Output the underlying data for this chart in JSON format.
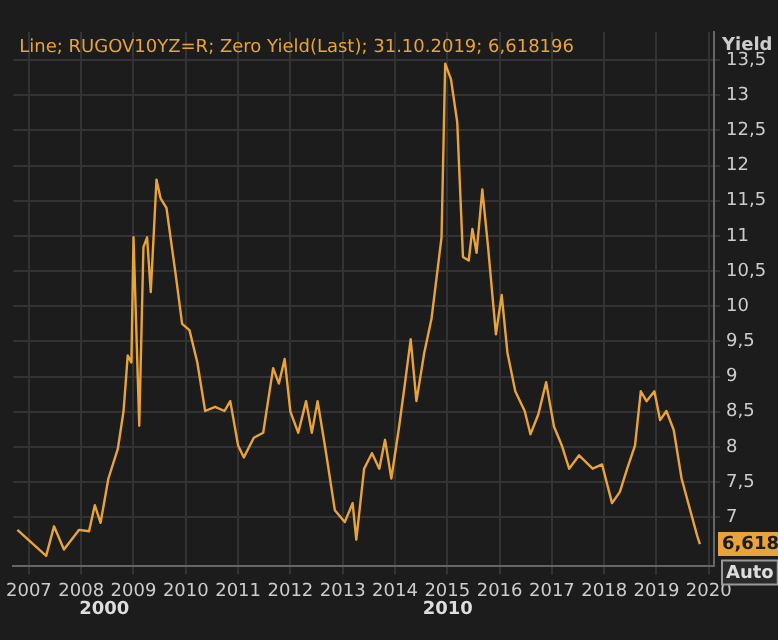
{
  "chart_data": {
    "type": "line",
    "title": "Line; RUGOV10YZ=R; Zero Yield(Last); 31.10.2019; 6,618196",
    "ylabel": "Yield",
    "x": [
      2006.78,
      2007.33,
      2007.48,
      2007.67,
      2007.96,
      2008.15,
      2008.26,
      2008.37,
      2008.52,
      2008.7,
      2008.81,
      2008.89,
      2008.96,
      2009.0,
      2009.11,
      2009.19,
      2009.26,
      2009.33,
      2009.44,
      2009.52,
      2009.63,
      2009.81,
      2009.93,
      2010.07,
      2010.22,
      2010.37,
      2010.56,
      2010.74,
      2010.85,
      2011.0,
      2011.11,
      2011.3,
      2011.48,
      2011.67,
      2011.78,
      2011.89,
      2012.0,
      2012.15,
      2012.3,
      2012.41,
      2012.52,
      2012.67,
      2012.85,
      2013.04,
      2013.19,
      2013.26,
      2013.41,
      2013.56,
      2013.7,
      2013.81,
      2013.93,
      2014.07,
      2014.19,
      2014.3,
      2014.41,
      2014.56,
      2014.7,
      2014.89,
      2014.96,
      2015.07,
      2015.19,
      2015.3,
      2015.41,
      2015.48,
      2015.56,
      2015.67,
      2015.78,
      2015.93,
      2016.04,
      2016.15,
      2016.3,
      2016.48,
      2016.59,
      2016.74,
      2016.89,
      2017.04,
      2017.19,
      2017.33,
      2017.52,
      2017.78,
      2017.96,
      2018.15,
      2018.3,
      2018.44,
      2018.59,
      2018.7,
      2018.81,
      2018.96,
      2019.07,
      2019.19,
      2019.33,
      2019.48,
      2019.63,
      2019.78,
      2019.83
    ],
    "series": [
      {
        "color": "#e8a33a",
        "values": [
          6.82,
          6.45,
          6.87,
          6.54,
          6.82,
          6.8,
          7.17,
          6.92,
          7.55,
          7.97,
          8.51,
          9.3,
          9.2,
          10.98,
          8.3,
          10.84,
          10.98,
          10.2,
          11.8,
          11.53,
          11.4,
          10.43,
          9.75,
          9.66,
          9.2,
          8.51,
          8.57,
          8.51,
          8.65,
          8.02,
          7.85,
          8.13,
          8.2,
          9.12,
          8.9,
          9.25,
          8.5,
          8.2,
          8.65,
          8.2,
          8.65,
          7.97,
          7.1,
          6.93,
          7.2,
          6.68,
          7.69,
          7.91,
          7.69,
          8.1,
          7.55,
          8.24,
          8.9,
          9.53,
          8.65,
          9.34,
          9.83,
          10.98,
          13.45,
          13.23,
          12.62,
          10.7,
          10.65,
          11.1,
          10.76,
          11.66,
          10.84,
          9.6,
          10.16,
          9.34,
          8.79,
          8.51,
          8.18,
          8.46,
          8.92,
          8.29,
          8.02,
          7.69,
          7.88,
          7.69,
          7.75,
          7.2,
          7.36,
          7.69,
          8.02,
          8.79,
          8.65,
          8.79,
          8.38,
          8.51,
          8.24,
          7.55,
          7.14,
          6.73,
          6.618
        ]
      }
    ],
    "xlim": [
      2006.7,
      2020.1
    ],
    "xticks": [
      2007,
      2008,
      2009,
      2010,
      2011,
      2012,
      2013,
      2014,
      2015,
      2016,
      2017,
      2018,
      2019,
      2020
    ],
    "ylim": [
      6.3,
      13.9
    ],
    "yticks": [
      {
        "value": 7,
        "label": "7"
      },
      {
        "value": 7.5,
        "label": "7,5"
      },
      {
        "value": 8,
        "label": "8"
      },
      {
        "value": 8.5,
        "label": "8,5"
      },
      {
        "value": 9,
        "label": "9"
      },
      {
        "value": 9.5,
        "label": "9,5"
      },
      {
        "value": 10,
        "label": "10"
      },
      {
        "value": 10.5,
        "label": "10,5"
      },
      {
        "value": 11,
        "label": "11"
      },
      {
        "value": 11.5,
        "label": "11,5"
      },
      {
        "value": 12,
        "label": "12"
      },
      {
        "value": 12.5,
        "label": "12,5"
      },
      {
        "value": 13,
        "label": "13"
      },
      {
        "value": 13.5,
        "label": "13,5"
      }
    ],
    "annotations": [
      "2000",
      "2010",
      "Auto",
      {
        "text": "6,618",
        "y": 6.618
      }
    ],
    "grid": true,
    "legend": false,
    "marker": "none",
    "line_style": "solid"
  }
}
